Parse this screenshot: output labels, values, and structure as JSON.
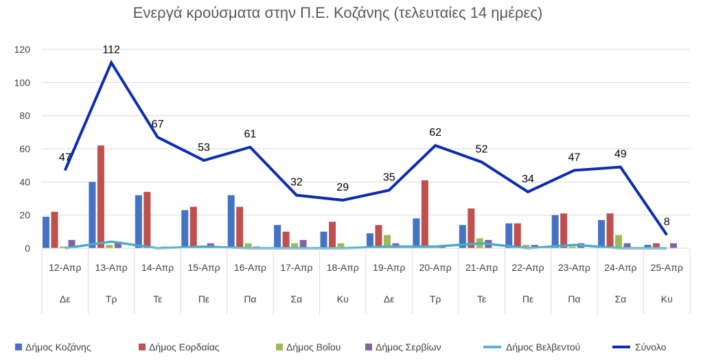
{
  "chart_data": {
    "type": "bar",
    "title": "Ενεργά κρούσματα στην Π.Ε. Κοζάνης (τελευταίες 14 ημέρες)",
    "xlabel": "",
    "ylabel": "",
    "ylim": [
      0,
      120
    ],
    "yticks": [
      0,
      20,
      40,
      60,
      80,
      100,
      120
    ],
    "grid": true,
    "legend": "bottom",
    "categories": [
      "12-Απρ",
      "13-Απρ",
      "14-Απρ",
      "15-Απρ",
      "16-Απρ",
      "17-Απρ",
      "18-Απρ",
      "19-Απρ",
      "20-Απρ",
      "21-Απρ",
      "22-Απρ",
      "23-Απρ",
      "24-Απρ",
      "25-Απρ"
    ],
    "weekdays": [
      "Δε",
      "Τρ",
      "Τε",
      "Πε",
      "Πα",
      "Σα",
      "Κυ",
      "Δε",
      "Τρ",
      "Τε",
      "Πε",
      "Πα",
      "Σα",
      "Κυ"
    ],
    "series": [
      {
        "name": "Δήμος Κοζάνης",
        "kind": "bar",
        "color": "#4472c4",
        "values": [
          19,
          40,
          32,
          23,
          32,
          14,
          10,
          9,
          18,
          14,
          15,
          20,
          17,
          2
        ]
      },
      {
        "name": "Δήμος Εορδαίας",
        "kind": "bar",
        "color": "#c0504d",
        "values": [
          22,
          62,
          34,
          25,
          25,
          10,
          16,
          14,
          41,
          24,
          15,
          21,
          21,
          3
        ]
      },
      {
        "name": "Δήμος Βοΐου",
        "kind": "bar",
        "color": "#9bbb59",
        "values": [
          1,
          2,
          0,
          1,
          3,
          3,
          3,
          8,
          1,
          6,
          2,
          1,
          8,
          0
        ]
      },
      {
        "name": "Δήμος Σερβίων",
        "kind": "bar",
        "color": "#8064a2",
        "values": [
          5,
          4,
          1,
          3,
          1,
          5,
          0,
          3,
          1,
          5,
          2,
          3,
          3,
          3
        ]
      },
      {
        "name": "Δήμος Βελβεντού",
        "kind": "line",
        "color": "#4bacc6",
        "values": [
          0,
          4,
          0,
          1,
          0,
          0,
          0,
          1,
          1,
          3,
          0,
          2,
          0,
          0
        ]
      },
      {
        "name": "Σύνολο",
        "kind": "line",
        "color": "#0a2db0",
        "values": [
          47,
          112,
          67,
          53,
          61,
          32,
          29,
          35,
          62,
          52,
          34,
          47,
          49,
          8
        ],
        "labels": true
      }
    ]
  }
}
